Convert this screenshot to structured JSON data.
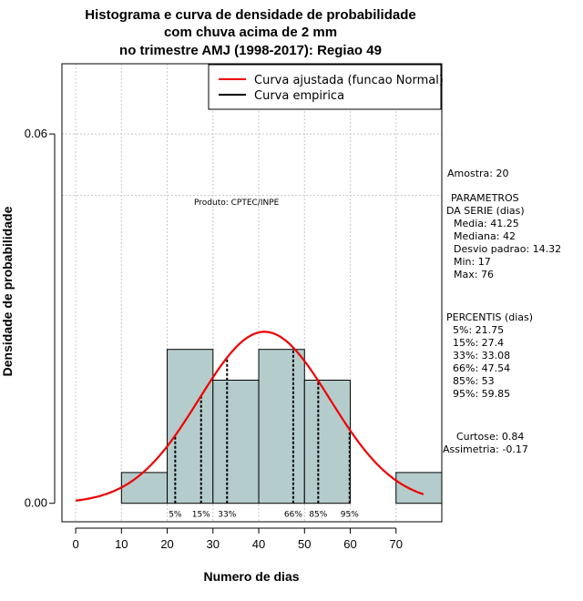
{
  "chart_data": {
    "type": "bar",
    "title_lines": [
      "Histograma e curva de densidade de probabilidade",
      "com chuva acima de 2 mm",
      "no trimestre AMJ (1998-2017): Regiao 49"
    ],
    "xlabel": "Numero de dias",
    "ylabel": "Densidade de probabilidade",
    "xlim": [
      -3,
      80
    ],
    "ylim": [
      -0.003,
      0.0714
    ],
    "x_ticks": [
      0,
      10,
      20,
      30,
      40,
      50,
      60,
      70
    ],
    "y_ticks": [
      0.0,
      0.06
    ],
    "y_tick_labels": [
      "0.00",
      "0.06"
    ],
    "grid_x": [
      0,
      10,
      20,
      30,
      40,
      50,
      60,
      70
    ],
    "grid_y": [
      0.06,
      0.05
    ],
    "bins": [
      {
        "from": 10,
        "to": 20,
        "density": 0.005
      },
      {
        "from": 20,
        "to": 30,
        "density": 0.025
      },
      {
        "from": 30,
        "to": 40,
        "density": 0.02
      },
      {
        "from": 40,
        "to": 50,
        "density": 0.025
      },
      {
        "from": 50,
        "to": 60,
        "density": 0.02
      },
      {
        "from": 70,
        "to": 80,
        "density": 0.005
      }
    ],
    "bar_color": "#b5cccc",
    "normal_curve": {
      "name": "Curva ajustada (funcao Normal)",
      "mean": 41.25,
      "sd": 14.32,
      "x_from": 0,
      "x_to": 76,
      "color": "#ee0000"
    },
    "empirical_curve": {
      "name": "Curva empirica",
      "color": "#000000"
    },
    "percentile_lines": [
      {
        "label": "5%",
        "x": 21.75
      },
      {
        "label": "15%",
        "x": 27.4
      },
      {
        "label": "33%",
        "x": 33.08
      },
      {
        "label": "66%",
        "x": 47.54
      },
      {
        "label": "85%",
        "x": 53
      },
      {
        "label": "95%",
        "x": 59.85
      }
    ],
    "product_label": "Produto: CPTEC/INPE",
    "legend_position": "top-right"
  },
  "side_panel": {
    "amostra": "Amostra: 20",
    "parametros_lines": [
      "PARAMETROS",
      "DA SERIE (dias)"
    ],
    "parametros_values": [
      "Media: 41.25",
      "Mediana: 42",
      "Desvio padrao: 14.32",
      "Min: 17",
      "Max: 76"
    ],
    "percentis_title": "PERCENTIS (dias)",
    "percentis_values": [
      "5%: 21.75",
      "15%: 27.4",
      "33%: 33.08",
      "66%: 47.54",
      "85%: 53",
      "95%: 59.85"
    ],
    "curtose": "Curtose: 0.84",
    "assimetria": "Assimetria: -0.17"
  }
}
